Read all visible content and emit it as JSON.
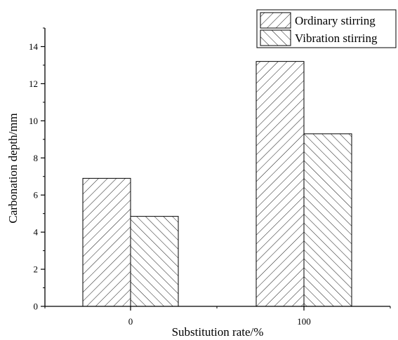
{
  "chart_data": {
    "type": "bar",
    "title": "",
    "xlabel": "Substitution rate/%",
    "ylabel": "Carbonation depth/mm",
    "categories": [
      "0",
      "100"
    ],
    "series": [
      {
        "name": "Ordinary stirring",
        "values": [
          6.9,
          13.2
        ],
        "pattern": "forward-diagonal-hatch"
      },
      {
        "name": "Vibration stirring",
        "values": [
          4.85,
          9.3
        ],
        "pattern": "backward-diagonal-hatch"
      }
    ],
    "ylim": [
      0,
      15
    ],
    "yticks": [
      0,
      2,
      4,
      6,
      8,
      10,
      12,
      14
    ],
    "grid": false,
    "legend_position": "top-right",
    "bar_fill": "#ffffff",
    "stroke_color": "#000000"
  }
}
